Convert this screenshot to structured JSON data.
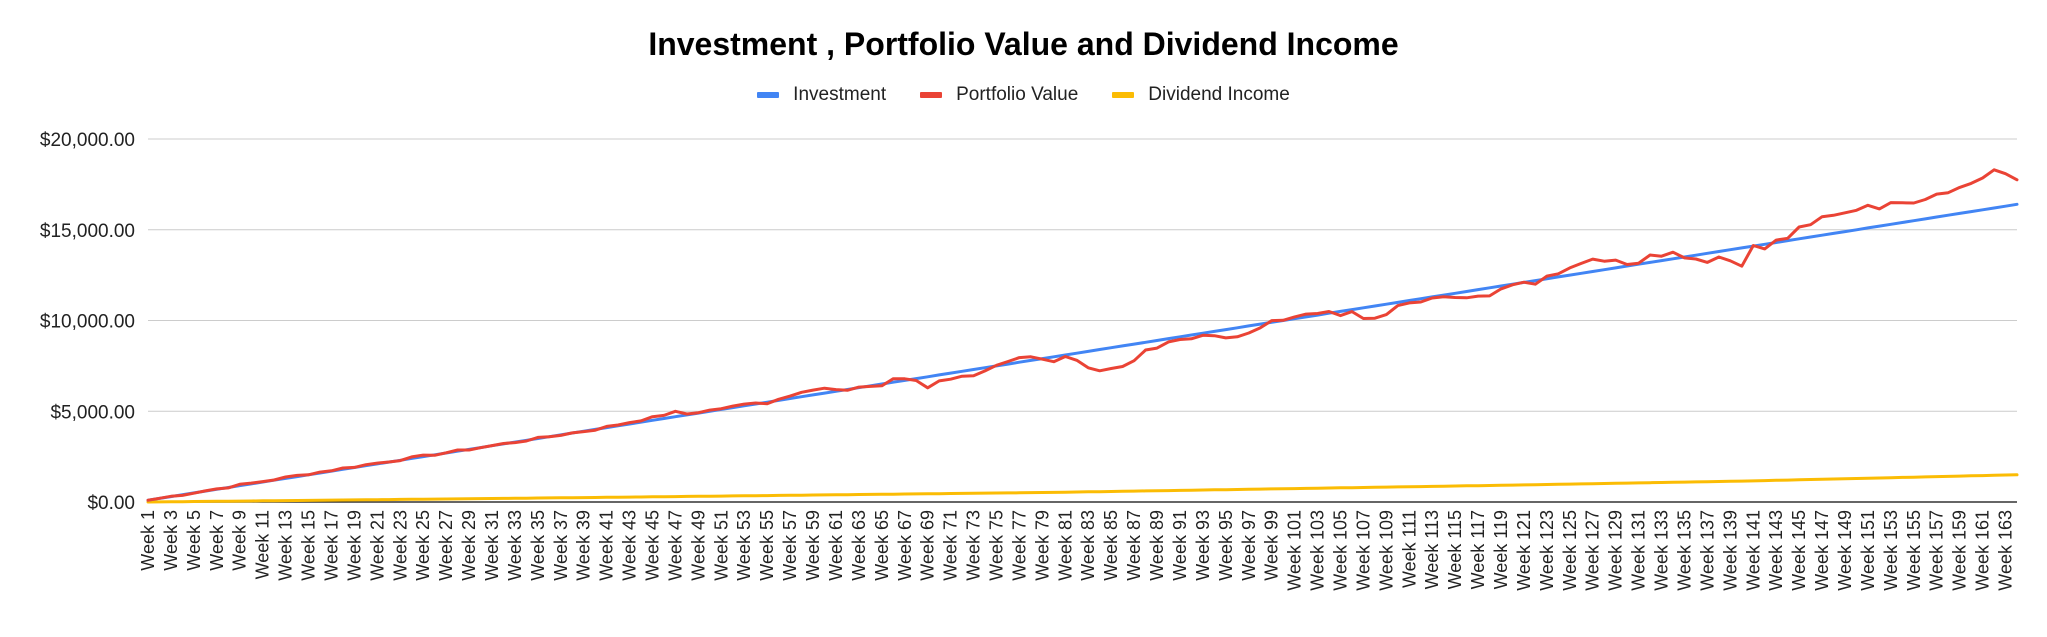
{
  "chart_data": {
    "type": "line",
    "title": "Investment , Portfolio Value and Dividend Income",
    "xlabel": "",
    "ylabel": "",
    "ylim": [
      0,
      20000
    ],
    "yticks": [
      0,
      5000,
      10000,
      15000,
      20000
    ],
    "ytick_labels": [
      "$0.00",
      "$5,000.00",
      "$10,000.00",
      "$15,000.00",
      "$20,000.00"
    ],
    "grid": true,
    "legend_position": "top",
    "x_count": 164,
    "x_label_prefix": "Week ",
    "x_label_step": 2,
    "series": [
      {
        "name": "Investment",
        "color": "#4285f4",
        "description": "linear from 100 at Week 1 to 16400 at Week 164 (+100 per week)",
        "values": [
          100,
          16400
        ]
      },
      {
        "name": "Portfolio Value",
        "color": "#ea4335",
        "keypoints": [
          [
            1,
            100
          ],
          [
            15,
            1550
          ],
          [
            20,
            2050
          ],
          [
            30,
            3000
          ],
          [
            40,
            4000
          ],
          [
            45,
            4650
          ],
          [
            47,
            4950
          ],
          [
            48,
            4850
          ],
          [
            52,
            5250
          ],
          [
            54,
            5500
          ],
          [
            55,
            5450
          ],
          [
            58,
            6100
          ],
          [
            60,
            6250
          ],
          [
            62,
            6100
          ],
          [
            63,
            6350
          ],
          [
            65,
            6400
          ],
          [
            66,
            6800
          ],
          [
            68,
            6700
          ],
          [
            69,
            6300
          ],
          [
            70,
            6700
          ],
          [
            73,
            7000
          ],
          [
            75,
            7500
          ],
          [
            77,
            7900
          ],
          [
            78,
            7950
          ],
          [
            80,
            7700
          ],
          [
            81,
            8000
          ],
          [
            82,
            7800
          ],
          [
            83,
            7450
          ],
          [
            84,
            7250
          ],
          [
            86,
            7500
          ],
          [
            87,
            7800
          ],
          [
            88,
            8350
          ],
          [
            89,
            8450
          ],
          [
            90,
            8850
          ],
          [
            91,
            8900
          ],
          [
            93,
            9200
          ],
          [
            94,
            9150
          ],
          [
            95,
            9050
          ],
          [
            97,
            9250
          ],
          [
            98,
            9600
          ],
          [
            99,
            9950
          ],
          [
            100,
            10000
          ],
          [
            102,
            10400
          ],
          [
            103,
            10350
          ],
          [
            104,
            10450
          ],
          [
            105,
            10300
          ],
          [
            106,
            10550
          ],
          [
            107,
            10150
          ],
          [
            108,
            10100
          ],
          [
            109,
            10300
          ],
          [
            110,
            10800
          ],
          [
            112,
            11050
          ],
          [
            114,
            11350
          ],
          [
            116,
            11300
          ],
          [
            117,
            11400
          ],
          [
            118,
            11350
          ],
          [
            119,
            11700
          ],
          [
            121,
            12150
          ],
          [
            122,
            12000
          ],
          [
            123,
            12500
          ],
          [
            124,
            12600
          ],
          [
            125,
            12900
          ],
          [
            126,
            13200
          ],
          [
            127,
            13400
          ],
          [
            128,
            13300
          ],
          [
            129,
            13350
          ],
          [
            130,
            13050
          ],
          [
            131,
            13200
          ],
          [
            132,
            13650
          ],
          [
            133,
            13600
          ],
          [
            134,
            13750
          ],
          [
            135,
            13500
          ],
          [
            136,
            13400
          ],
          [
            137,
            13250
          ],
          [
            138,
            13500
          ],
          [
            139,
            13300
          ],
          [
            140,
            13050
          ],
          [
            141,
            14100
          ],
          [
            142,
            13950
          ],
          [
            143,
            14400
          ],
          [
            144,
            14550
          ],
          [
            145,
            15100
          ],
          [
            146,
            15250
          ],
          [
            147,
            15700
          ],
          [
            149,
            15950
          ],
          [
            151,
            16300
          ],
          [
            152,
            16200
          ],
          [
            153,
            16550
          ],
          [
            155,
            16500
          ],
          [
            157,
            16950
          ],
          [
            158,
            17050
          ],
          [
            159,
            17350
          ],
          [
            160,
            17550
          ],
          [
            161,
            17800
          ],
          [
            162,
            18300
          ],
          [
            163,
            18100
          ],
          [
            164,
            17750
          ],
          [
            164,
            17850
          ]
        ]
      },
      {
        "name": "Dividend Income",
        "color": "#fbbc04",
        "keypoints": [
          [
            1,
            0
          ],
          [
            40,
            250
          ],
          [
            80,
            530
          ],
          [
            120,
            930
          ],
          [
            140,
            1150
          ],
          [
            164,
            1500
          ]
        ]
      }
    ]
  }
}
